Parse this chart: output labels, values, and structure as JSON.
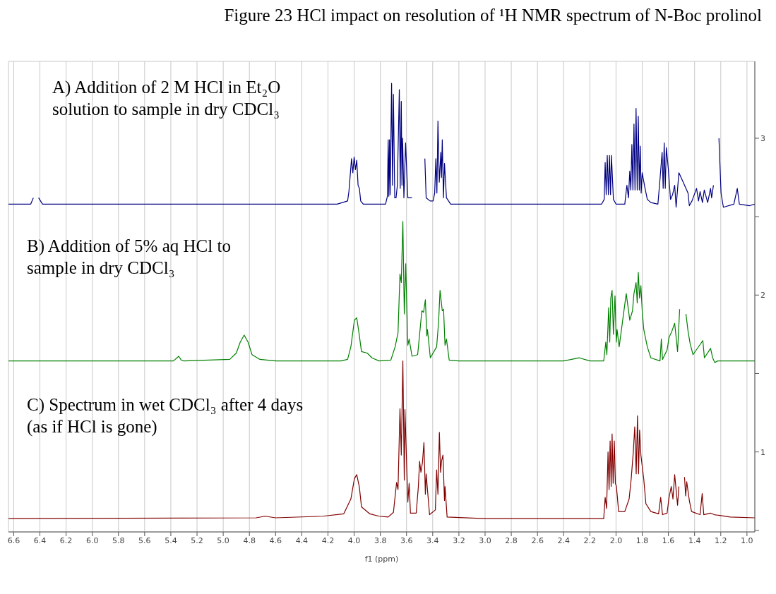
{
  "chart_data": {
    "type": "line",
    "title": "Figure 23 HCl impact on resolution of ¹H NMR spectrum of N-Boc prolinol",
    "xlabel": "f1 (ppm)",
    "annotations": [
      "A) Addition of 2 M HCl in Et₂O solution to sample in dry CDCl₃",
      "B) Addition of 5% aq HCl to sample in dry CDCl₃",
      "C) Spectrum in wet CDCl₃ after 4 days (as if HCl is gone)"
    ],
    "xlim": [
      6.64,
      0.94
    ],
    "xticks": [
      6.6,
      6.4,
      6.2,
      {
        "value": 6,
        "label": "6.0"
      },
      5.8,
      5.6,
      5.4,
      5.2,
      {
        "value": 5,
        "label": "5.0"
      },
      4.8,
      4.6,
      4.4,
      4.2,
      {
        "value": 4,
        "label": "4.0"
      },
      3.8,
      3.6,
      3.4,
      3.2,
      {
        "value": 3,
        "label": "3.0"
      },
      2.8,
      2.6,
      2.4,
      2.2,
      {
        "value": 2,
        "label": "2.0"
      },
      1.8,
      1.6,
      1.4,
      1.2,
      {
        "value": 1,
        "label": "1.0"
      }
    ],
    "ylim": [
      0.49,
      3.49
    ],
    "yticks": [
      {
        "value": 0.5,
        "label": null
      },
      1,
      {
        "value": 1.5,
        "label": null
      },
      2,
      {
        "value": 2.5,
        "label": null
      },
      3
    ],
    "grid": true,
    "marker": "none",
    "line_style": "solid",
    "series": [
      {
        "color": "#000080",
        "x": [
          6.64,
          6.47,
          6.45,
          6.44,
          6.43,
          6.41,
          6.38,
          4.13,
          4.05,
          4.04,
          4.02,
          4.01,
          4.0,
          3.99,
          3.98,
          3.97,
          3.96,
          3.95,
          3.93,
          3.76,
          3.746,
          3.74,
          3.735,
          3.73,
          3.725,
          3.714,
          3.707,
          3.7,
          3.69,
          3.68,
          3.67,
          3.655,
          3.648,
          3.64,
          3.635,
          3.63,
          3.62,
          3.607,
          3.59,
          3.558,
          3.53,
          3.515,
          3.505,
          3.495,
          3.478,
          3.47,
          3.46,
          3.45,
          3.42,
          3.397,
          3.385,
          3.376,
          3.368,
          3.36,
          3.35,
          3.338,
          3.333,
          3.327,
          3.318,
          3.31,
          3.295,
          3.263,
          2.2,
          2.11,
          2.09,
          2.083,
          2.075,
          2.067,
          2.058,
          2.05,
          2.042,
          2.035,
          2.02,
          2.0,
          1.933,
          1.917,
          1.905,
          1.895,
          1.887,
          1.879,
          1.871,
          1.863,
          1.855,
          1.847,
          1.838,
          1.83,
          1.822,
          1.815,
          1.808,
          1.8,
          1.783,
          1.761,
          1.734,
          1.68,
          1.664,
          1.648,
          1.64,
          1.632,
          1.624,
          1.616,
          1.6,
          1.584,
          1.568,
          1.552,
          1.541,
          1.52,
          1.487,
          1.45,
          1.44,
          1.42,
          1.385,
          1.37,
          1.358,
          1.34,
          1.326,
          1.3,
          1.278,
          1.27,
          1.256,
          1.246,
          1.236,
          1.225,
          1.214,
          1.198,
          1.18,
          1.1,
          1.074,
          1.058,
          0.98,
          0.94
        ],
        "values": [
          2.58,
          2.58,
          2.62,
          null,
          null,
          2.62,
          2.58,
          2.58,
          2.6,
          2.66,
          2.87,
          2.78,
          2.88,
          2.8,
          2.86,
          2.7,
          2.68,
          2.6,
          2.58,
          2.58,
          2.63,
          2.99,
          2.63,
          2.99,
          2.64,
          3.35,
          2.7,
          3.28,
          2.62,
          2.62,
          2.7,
          3.31,
          2.68,
          3.235,
          2.7,
          3.0,
          2.62,
          2.97,
          2.62,
          2.62,
          null,
          null,
          null,
          null,
          null,
          null,
          2.87,
          2.62,
          2.6,
          2.6,
          2.65,
          2.87,
          2.65,
          3.11,
          2.72,
          2.91,
          2.75,
          2.99,
          2.62,
          2.84,
          2.62,
          2.58,
          2.58,
          2.58,
          2.61,
          2.845,
          2.64,
          2.89,
          2.64,
          2.89,
          2.64,
          2.89,
          2.61,
          2.58,
          2.58,
          2.7,
          2.62,
          2.79,
          2.67,
          2.96,
          2.67,
          3.09,
          2.67,
          3.19,
          2.67,
          3.14,
          2.67,
          2.95,
          2.65,
          2.78,
          2.7,
          2.61,
          2.59,
          2.58,
          2.74,
          2.91,
          2.68,
          2.97,
          2.68,
          2.94,
          2.8,
          2.61,
          2.64,
          2.7,
          2.56,
          2.78,
          2.72,
          2.65,
          2.57,
          2.6,
          2.68,
          2.6,
          2.66,
          2.59,
          2.67,
          2.59,
          2.68,
          2.62,
          2.7,
          null,
          null,
          null,
          3.0,
          2.65,
          2.56,
          2.58,
          2.68,
          2.58,
          2.57,
          2.58
        ]
      },
      {
        "color": "#008000",
        "x": [
          6.64,
          5.38,
          5.34,
          5.32,
          5.3,
          4.95,
          4.9,
          4.87,
          4.84,
          4.81,
          4.78,
          4.72,
          4.6,
          4.1,
          4.05,
          4.025,
          3.998,
          3.98,
          3.96,
          3.944,
          3.9,
          3.864,
          3.81,
          3.72,
          3.687,
          3.665,
          3.65,
          3.64,
          3.628,
          3.617,
          3.606,
          3.59,
          3.58,
          3.558,
          3.515,
          3.5,
          3.483,
          3.47,
          3.456,
          3.445,
          3.44,
          3.418,
          3.37,
          3.355,
          3.344,
          3.327,
          3.317,
          3.306,
          3.295,
          3.274,
          3.2,
          2.4,
          2.28,
          2.2,
          2.094,
          2.078,
          2.07,
          2.056,
          2.048,
          2.04,
          2.03,
          2.02,
          2.008,
          1.998,
          1.992,
          1.976,
          1.922,
          1.895,
          1.874,
          1.863,
          1.847,
          1.838,
          1.83,
          1.82,
          1.81,
          1.8,
          1.788,
          1.761,
          1.734,
          1.664,
          1.654,
          1.645,
          1.61,
          1.595,
          1.573,
          1.552,
          1.53,
          1.514,
          1.497,
          1.49,
          1.466,
          1.45,
          1.434,
          1.412,
          1.337,
          1.325,
          1.278,
          1.262,
          1.246,
          1.225,
          0.94
        ],
        "values": [
          1.58,
          1.58,
          1.61,
          1.585,
          1.58,
          1.59,
          1.63,
          1.7,
          1.745,
          1.7,
          1.62,
          1.59,
          1.58,
          1.58,
          1.59,
          1.67,
          1.84,
          1.855,
          1.74,
          1.64,
          1.63,
          1.6,
          1.58,
          1.585,
          1.67,
          1.76,
          2.135,
          2.08,
          2.47,
          1.88,
          2.2,
          1.68,
          1.72,
          1.61,
          1.62,
          1.75,
          1.9,
          1.89,
          1.97,
          1.74,
          1.78,
          1.6,
          1.67,
          1.83,
          2.03,
          1.9,
          1.91,
          1.68,
          1.72,
          1.585,
          1.58,
          1.58,
          1.6,
          1.58,
          1.58,
          1.7,
          1.62,
          1.92,
          1.7,
          1.98,
          2.03,
          1.75,
          1.995,
          1.7,
          1.78,
          1.67,
          2.01,
          1.84,
          1.9,
          2.01,
          2.08,
          1.95,
          2.145,
          1.98,
          2.06,
          1.9,
          1.78,
          1.67,
          1.6,
          1.58,
          1.72,
          1.59,
          1.65,
          1.73,
          1.77,
          1.82,
          1.64,
          1.91,
          null,
          null,
          1.88,
          1.77,
          1.69,
          1.62,
          1.71,
          1.6,
          1.66,
          1.6,
          1.57,
          1.58,
          1.58
        ]
      },
      {
        "color": "#800000",
        "x": [
          6.64,
          4.75,
          4.68,
          4.6,
          4.24,
          4.08,
          4.025,
          3.998,
          3.98,
          3.96,
          3.944,
          3.88,
          3.81,
          3.74,
          3.7,
          3.676,
          3.665,
          3.65,
          3.64,
          3.628,
          3.617,
          3.612,
          3.59,
          3.58,
          3.57,
          3.526,
          3.51,
          3.5,
          3.49,
          3.478,
          3.467,
          3.456,
          3.45,
          3.424,
          3.38,
          3.37,
          3.36,
          3.349,
          3.34,
          3.333,
          3.322,
          3.31,
          3.306,
          3.29,
          3.0,
          2.2,
          2.094,
          2.083,
          2.072,
          2.061,
          2.053,
          2.045,
          2.037,
          2.03,
          2.022,
          2.013,
          2.005,
          1.997,
          1.98,
          1.933,
          1.9,
          1.884,
          1.868,
          1.857,
          1.846,
          1.836,
          1.828,
          1.82,
          1.81,
          1.788,
          1.772,
          1.734,
          1.675,
          1.659,
          1.645,
          1.61,
          1.595,
          1.578,
          1.565,
          1.552,
          1.53,
          1.52,
          1.503,
          1.493,
          1.477,
          1.468,
          1.46,
          1.44,
          1.423,
          1.358,
          1.342,
          1.33,
          1.278,
          1.25,
          1.128,
          0.94
        ],
        "values": [
          0.575,
          0.58,
          0.59,
          0.58,
          0.59,
          0.605,
          0.7,
          0.83,
          0.855,
          0.775,
          0.65,
          0.605,
          0.59,
          0.585,
          0.615,
          0.805,
          0.76,
          1.275,
          0.98,
          1.58,
          0.82,
          1.27,
          0.68,
          0.8,
          0.61,
          0.61,
          0.775,
          0.94,
          0.87,
          0.935,
          1.06,
          0.73,
          0.86,
          0.6,
          0.63,
          0.885,
          0.73,
          1.125,
          0.87,
          0.94,
          0.98,
          0.69,
          0.78,
          0.585,
          0.575,
          0.575,
          0.575,
          0.71,
          0.64,
          1.0,
          0.76,
          1.07,
          0.78,
          1.115,
          0.8,
          1.07,
          0.8,
          0.78,
          0.62,
          0.62,
          0.7,
          0.83,
          1.0,
          1.16,
          0.86,
          1.23,
          0.86,
          1.14,
          0.98,
          0.825,
          0.67,
          0.62,
          0.605,
          0.71,
          0.6,
          0.61,
          0.71,
          0.78,
          0.7,
          0.855,
          0.66,
          0.78,
          null,
          null,
          0.84,
          0.72,
          0.81,
          0.69,
          0.62,
          0.6,
          0.735,
          0.6,
          0.61,
          0.6,
          0.585,
          0.58
        ]
      }
    ]
  }
}
